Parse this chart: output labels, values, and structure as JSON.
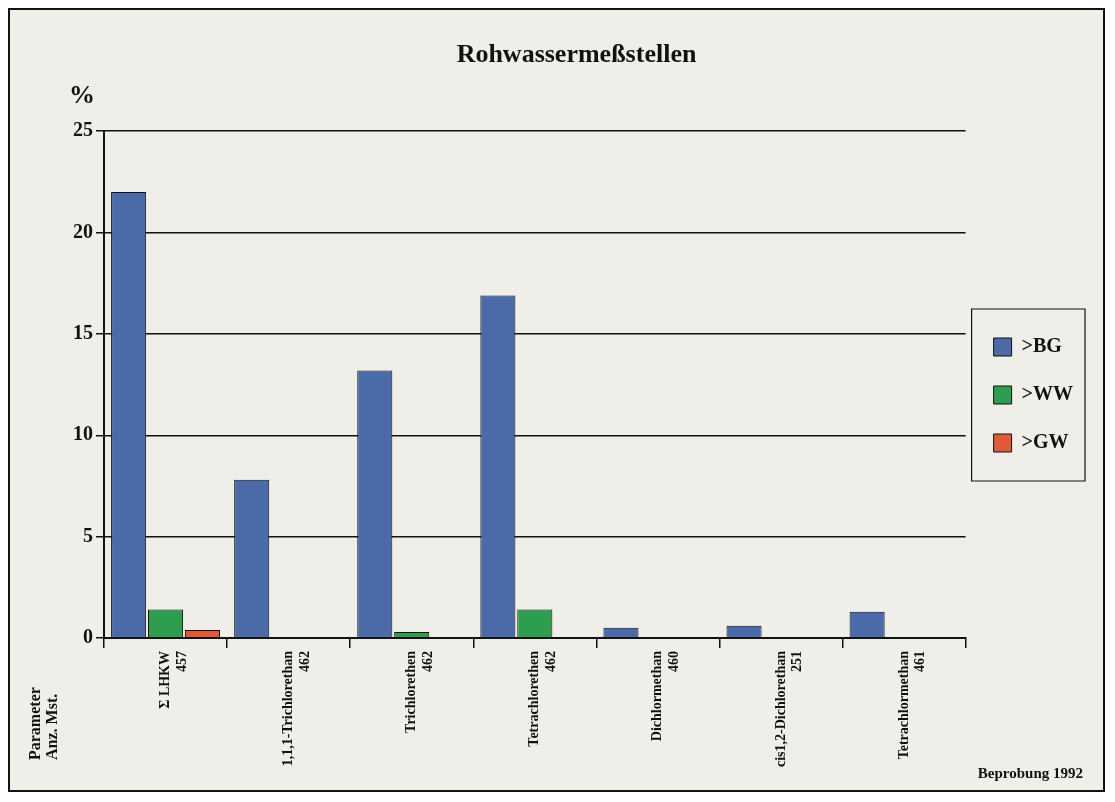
{
  "chart_data": {
    "type": "bar",
    "title": "Rohwassermeßstellen",
    "ylabel": "%",
    "categories": [
      "Σ LHKW\n457",
      "1,1,1-Trichlorethan\n462",
      "Trichlorethen\n462",
      "Tetrachlorethen\n462",
      "Dichlormethan\n460",
      "cis1,2-Dichlorethan\n251",
      "Tetrachlormethan\n461"
    ],
    "series": [
      {
        "name": ">BG",
        "color": "#4a6aa8",
        "values": [
          22.0,
          7.8,
          13.2,
          16.9,
          0.5,
          0.6,
          1.3
        ]
      },
      {
        "name": ">WW",
        "color": "#2e9e4e",
        "values": [
          1.4,
          null,
          0.3,
          1.4,
          null,
          null,
          null
        ]
      },
      {
        "name": ">GW",
        "color": "#e05a3a",
        "values": [
          0.4,
          null,
          null,
          null,
          null,
          null,
          null
        ]
      }
    ],
    "ylim": [
      0,
      25
    ],
    "yticks": [
      0,
      5,
      10,
      15,
      20,
      25
    ],
    "grid": "y",
    "legend": "right",
    "annotations": [
      "Parameter\nAnz. Mst.",
      "Beprobung 1992"
    ]
  }
}
